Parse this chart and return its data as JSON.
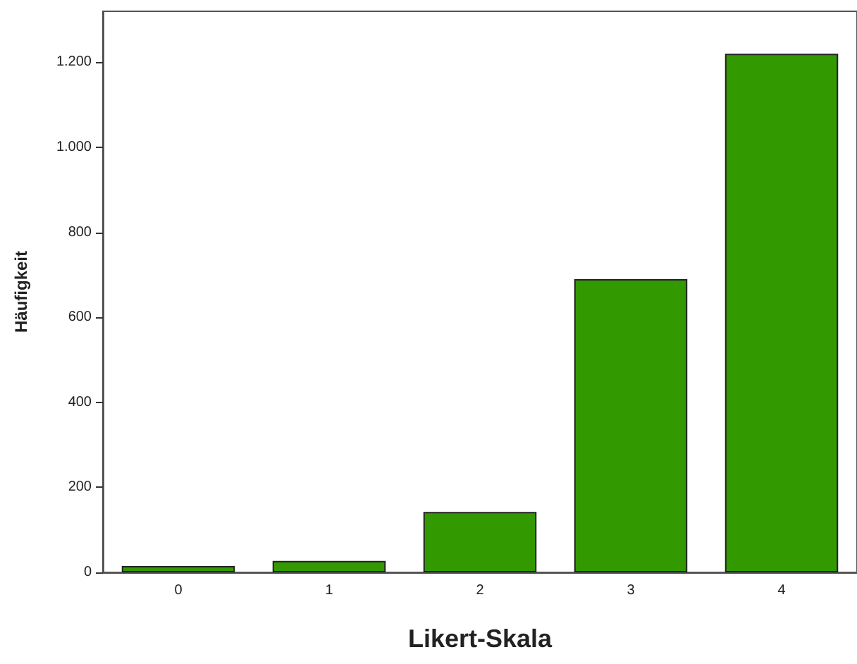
{
  "chart_data": {
    "type": "bar",
    "xlabel": "Likert-Skala",
    "ylabel": "Häufigkeit",
    "categories": [
      "0",
      "1",
      "2",
      "3",
      "4"
    ],
    "values": [
      15,
      27,
      142,
      690,
      1220
    ],
    "color": "#339900",
    "ylim": [
      0,
      1320
    ],
    "yticks": [
      0,
      200,
      400,
      600,
      800,
      {
        "value": 1000,
        "label": "1.000"
      },
      {
        "value": 1200,
        "label": "1.200"
      }
    ],
    "grid": false
  }
}
